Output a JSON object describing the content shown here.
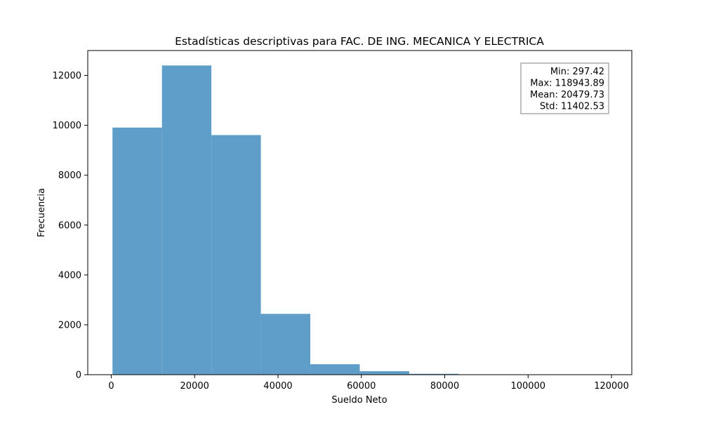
{
  "chart_data": {
    "type": "bar",
    "title": "Estadísticas descriptivas para FAC. DE ING. MECANICA Y ELECTRICA",
    "xlabel": "Sueldo Neto",
    "ylabel": "Frecuencia",
    "bins": [
      {
        "start": 297.42,
        "end": 12162.07,
        "count": 9910
      },
      {
        "start": 12162.07,
        "end": 24026.71,
        "count": 12400
      },
      {
        "start": 24026.71,
        "end": 35891.36,
        "count": 9610
      },
      {
        "start": 35891.36,
        "end": 47756.01,
        "count": 2440
      },
      {
        "start": 47756.01,
        "end": 59620.66,
        "count": 420
      },
      {
        "start": 59620.66,
        "end": 71485.3,
        "count": 140
      },
      {
        "start": 71485.3,
        "end": 83349.95,
        "count": 35
      },
      {
        "start": 83349.95,
        "end": 95214.6,
        "count": 15
      },
      {
        "start": 95214.6,
        "end": 107079.24,
        "count": 5
      },
      {
        "start": 107079.24,
        "end": 118943.89,
        "count": 2
      }
    ],
    "xlim": [
      -5635,
      124876
    ],
    "ylim": [
      0,
      13000
    ],
    "xticks": [
      0,
      20000,
      40000,
      60000,
      80000,
      100000,
      120000
    ],
    "yticks": [
      0,
      2000,
      4000,
      6000,
      8000,
      10000,
      12000
    ],
    "bar_color": "#5f9ec9",
    "grid": false,
    "stats_box": {
      "min": "Min: 297.42",
      "max": "Max: 118943.89",
      "mean": "Mean: 20479.73",
      "std": "Std: 11402.53"
    }
  }
}
